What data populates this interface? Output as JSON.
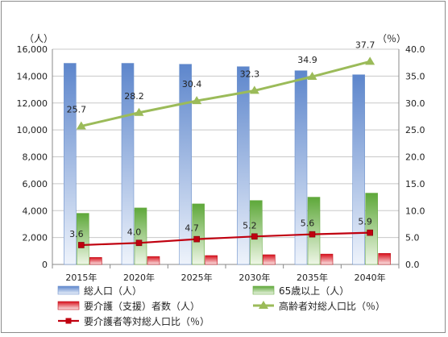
{
  "chart_data": {
    "type": "bar",
    "categories": [
      "2015年",
      "2020年",
      "2025年",
      "2030年",
      "2035年",
      "2040年"
    ],
    "left_axis": {
      "unit": "（人）",
      "range": [
        0,
        16000
      ],
      "ticks": [
        "0",
        "2,000",
        "4,000",
        "6,000",
        "8,000",
        "10,000",
        "12,000",
        "14,000",
        "16,000"
      ]
    },
    "right_axis": {
      "unit": "（％）",
      "range": [
        0,
        40
      ],
      "ticks": [
        "0.0",
        "5.0",
        "10.0",
        "15.0",
        "20.0",
        "25.0",
        "30.0",
        "35.0",
        "40.0"
      ]
    },
    "grid": true,
    "legend_position": "bottom",
    "series": [
      {
        "name": "総人口（人）",
        "type": "bar",
        "axis": "left",
        "color": "#7c9fd9",
        "values": [
          14950,
          14950,
          14880,
          14700,
          14400,
          14100
        ]
      },
      {
        "name": "65歳以上（人）",
        "type": "bar",
        "axis": "left",
        "color": "#7cbf4f",
        "values": [
          3800,
          4200,
          4500,
          4750,
          5000,
          5300
        ]
      },
      {
        "name": "要介護（支援）者数（人）",
        "type": "bar",
        "axis": "left",
        "color": "#e0202a",
        "values": [
          520,
          590,
          660,
          720,
          770,
          820
        ]
      },
      {
        "name": "高齢者対総人口比（％）",
        "type": "line",
        "axis": "right",
        "color": "#9bbb59",
        "marker": "triangle",
        "values": [
          25.7,
          28.2,
          30.4,
          32.3,
          34.9,
          37.7
        ],
        "labels": [
          "25.7",
          "28.2",
          "30.4",
          "32.3",
          "34.9",
          "37.7"
        ]
      },
      {
        "name": "要介護者等対総人口比（％）",
        "type": "line",
        "axis": "right",
        "color": "#c0000f",
        "marker": "square",
        "values": [
          3.6,
          4.0,
          4.7,
          5.2,
          5.6,
          5.9
        ],
        "labels": [
          "3.6",
          "4.0",
          "4.7",
          "5.2",
          "5.6",
          "5.9"
        ]
      }
    ]
  }
}
